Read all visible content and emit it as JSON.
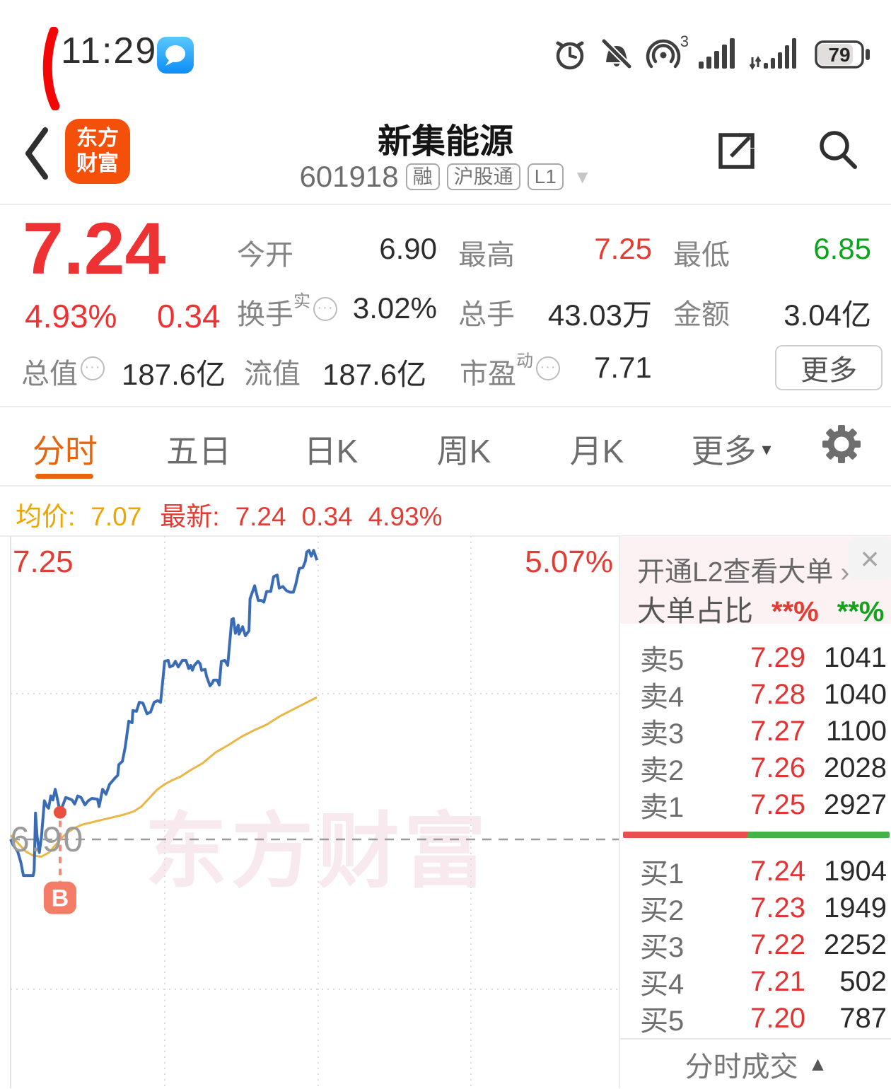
{
  "status_bar": {
    "time": "11:29",
    "battery": "79",
    "hotspot_count": "3"
  },
  "header": {
    "title": "新集能源",
    "code": "601918",
    "badges": [
      "融",
      "沪股通",
      "L1"
    ],
    "logo_line1": "东方",
    "logo_line2": "财富"
  },
  "quote": {
    "price": "7.24",
    "change_pct": "4.93%",
    "change": "0.34",
    "stats": [
      {
        "label": "今开",
        "value": "6.90"
      },
      {
        "label": "最高",
        "value": "7.25"
      },
      {
        "label": "最低",
        "value": "6.85"
      },
      {
        "label": "换手",
        "sup": "实",
        "value": "3.02%"
      },
      {
        "label": "总手",
        "value": "43.03万"
      },
      {
        "label": "金额",
        "value": "3.04亿"
      },
      {
        "label": "总值",
        "value": "187.6亿"
      },
      {
        "label": "流值",
        "value": "187.6亿"
      },
      {
        "label": "市盈",
        "sup": "动",
        "value": "7.71"
      }
    ],
    "more_button": "更多"
  },
  "tabs": {
    "items": [
      "分时",
      "五日",
      "日K",
      "周K",
      "月K",
      "更多"
    ],
    "active": "分时"
  },
  "subbar": {
    "avg_label": "均价:",
    "avg_value": "7.07",
    "last_label": "最新:",
    "last_value": "7.24",
    "last_change": "0.34",
    "last_pct": "4.93%"
  },
  "icons": {
    "dropdown": "▼",
    "more_caret": "▾",
    "footer_up": "▲",
    "link_arrow": "›",
    "close": "×",
    "info_dots": "···"
  },
  "chart_data": {
    "type": "line",
    "title": "分时走势 (intraday)",
    "x_axis": {
      "unit": "minutes_since_09:30",
      "session_minutes": 240,
      "gridline_times": [
        "10:30",
        "11:30/13:00",
        "14:00"
      ]
    },
    "y_axis": {
      "top_price": 7.255,
      "prev_close": 6.9,
      "low": 6.85,
      "top_label": "7.25",
      "top_pct_label": "5.07%",
      "close_label": "6.90"
    },
    "legend_position": "none",
    "grid": true,
    "series": [
      {
        "name": "price",
        "color": "#3a6cb5",
        "width": 4,
        "points": [
          [
            0,
            6.9
          ],
          [
            1,
            6.893
          ],
          [
            2.8,
            6.885
          ],
          [
            4,
            6.872
          ],
          [
            5,
            6.856
          ],
          [
            8.8,
            6.856
          ],
          [
            9.2,
            6.862
          ],
          [
            9.7,
            6.932
          ],
          [
            10.3,
            6.905
          ],
          [
            11.2,
            6.884
          ],
          [
            12,
            6.902
          ],
          [
            13.2,
            6.947
          ],
          [
            14.2,
            6.94
          ],
          [
            14.8,
            6.938
          ],
          [
            15.7,
            6.953
          ],
          [
            16.5,
            6.948
          ],
          [
            17.4,
            6.961
          ],
          [
            18.2,
            6.95
          ],
          [
            19.3,
            6.933
          ],
          [
            20.2,
            6.94
          ],
          [
            21.5,
            6.951
          ],
          [
            22.5,
            6.95
          ],
          [
            24,
            6.948
          ],
          [
            25,
            6.943
          ],
          [
            26.2,
            6.953
          ],
          [
            27.5,
            6.951
          ],
          [
            29,
            6.942
          ],
          [
            30.3,
            6.947
          ],
          [
            31.7,
            6.95
          ],
          [
            33.9,
            6.949
          ],
          [
            34.5,
            6.94
          ],
          [
            35.9,
            6.961
          ],
          [
            37.2,
            6.955
          ],
          [
            38.6,
            6.967
          ],
          [
            40.8,
            6.975
          ],
          [
            41.8,
            6.978
          ],
          [
            42.2,
            6.991
          ],
          [
            43.6,
            6.995
          ],
          [
            44.7,
            7.012
          ],
          [
            46.1,
            7.044
          ],
          [
            47.4,
            7.042
          ],
          [
            47.7,
            7.057
          ],
          [
            49.1,
            7.056
          ],
          [
            50.2,
            7.067
          ],
          [
            51.6,
            7.066
          ],
          [
            53.2,
            7.053
          ],
          [
            54.6,
            7.055
          ],
          [
            56,
            7.067
          ],
          [
            57.4,
            7.069
          ],
          [
            58.5,
            7.067
          ],
          [
            60.1,
            7.117
          ],
          [
            61.5,
            7.118
          ],
          [
            62.1,
            7.11
          ],
          [
            63.4,
            7.112
          ],
          [
            64.3,
            7.117
          ],
          [
            65.4,
            7.11
          ],
          [
            67,
            7.118
          ],
          [
            68.4,
            7.118
          ],
          [
            69.5,
            7.108
          ],
          [
            70.3,
            7.112
          ],
          [
            70.9,
            7.106
          ],
          [
            71.7,
            7.112
          ],
          [
            73.1,
            7.117
          ],
          [
            73.9,
            7.114
          ],
          [
            74.5,
            7.106
          ],
          [
            75.9,
            7.107
          ],
          [
            76.4,
            7.099
          ],
          [
            77.8,
            7.087
          ],
          [
            78.6,
            7.09
          ],
          [
            79.2,
            7.094
          ],
          [
            80.6,
            7.094
          ],
          [
            81.4,
            7.088
          ],
          [
            82.2,
            7.117
          ],
          [
            83.6,
            7.118
          ],
          [
            84.7,
            7.112
          ],
          [
            86.3,
            7.168
          ],
          [
            86.9,
            7.169
          ],
          [
            87.7,
            7.151
          ],
          [
            88.8,
            7.161
          ],
          [
            89.1,
            7.15
          ],
          [
            90.5,
            7.159
          ],
          [
            91.6,
            7.148
          ],
          [
            93,
            7.154
          ],
          [
            93.4,
            7.193
          ],
          [
            95.2,
            7.209
          ],
          [
            96.6,
            7.191
          ],
          [
            97.9,
            7.191
          ],
          [
            98.8,
            7.189
          ],
          [
            99.9,
            7.202
          ],
          [
            101.5,
            7.202
          ],
          [
            102.6,
            7.22
          ],
          [
            104,
            7.222
          ],
          [
            104.8,
            7.206
          ],
          [
            106.2,
            7.208
          ],
          [
            107.6,
            7.203
          ],
          [
            109,
            7.201
          ],
          [
            110.3,
            7.201
          ],
          [
            111.2,
            7.21
          ],
          [
            112.6,
            7.23
          ],
          [
            114,
            7.231
          ],
          [
            115,
            7.239
          ],
          [
            115.5,
            7.25
          ],
          [
            116.4,
            7.252
          ],
          [
            117.3,
            7.245
          ],
          [
            118.2,
            7.252
          ],
          [
            119.5,
            7.24
          ]
        ]
      },
      {
        "name": "avg_price",
        "color": "#eab646",
        "width": 3,
        "points": [
          [
            0,
            6.905
          ],
          [
            3,
            6.895
          ],
          [
            6,
            6.885
          ],
          [
            9,
            6.88
          ],
          [
            12,
            6.879
          ],
          [
            15,
            6.884
          ],
          [
            18,
            6.895
          ],
          [
            20,
            6.902
          ],
          [
            22,
            6.908
          ],
          [
            25,
            6.914
          ],
          [
            28,
            6.918
          ],
          [
            32,
            6.921
          ],
          [
            36,
            6.924
          ],
          [
            40,
            6.927
          ],
          [
            44,
            6.93
          ],
          [
            48,
            6.934
          ],
          [
            51,
            6.94
          ],
          [
            54,
            6.95
          ],
          [
            57,
            6.96
          ],
          [
            60,
            6.967
          ],
          [
            63,
            6.972
          ],
          [
            66,
            6.976
          ],
          [
            70,
            6.984
          ],
          [
            75,
            6.993
          ],
          [
            80,
            7.006
          ],
          [
            85,
            7.015
          ],
          [
            90,
            7.025
          ],
          [
            95,
            7.033
          ],
          [
            100,
            7.04
          ],
          [
            105,
            7.05
          ],
          [
            110,
            7.058
          ],
          [
            115,
            7.066
          ],
          [
            119.5,
            7.073
          ]
        ]
      }
    ],
    "buy_marker": {
      "label": "B",
      "t": 19.3,
      "price": 6.933
    },
    "watermark": "东方财富"
  },
  "order_panel": {
    "l2_link": "开通L2查看大单",
    "ratio_label": "大单占比",
    "ratio_buy_masked": "**%",
    "ratio_sell_masked": "**%",
    "asks": [
      {
        "label": "卖5",
        "price": "7.29",
        "volume": "1041"
      },
      {
        "label": "卖4",
        "price": "7.28",
        "volume": "1040"
      },
      {
        "label": "卖3",
        "price": "7.27",
        "volume": "1100"
      },
      {
        "label": "卖2",
        "price": "7.26",
        "volume": "2028"
      },
      {
        "label": "卖1",
        "price": "7.25",
        "volume": "2927"
      }
    ],
    "bids": [
      {
        "label": "买1",
        "price": "7.24",
        "volume": "1904"
      },
      {
        "label": "买2",
        "price": "7.23",
        "volume": "1949"
      },
      {
        "label": "买3",
        "price": "7.22",
        "volume": "2252"
      },
      {
        "label": "买4",
        "price": "7.21",
        "volume": "502"
      },
      {
        "label": "买5",
        "price": "7.20",
        "volume": "787"
      }
    ],
    "red_bar_ratio": 0.468,
    "colors": {
      "red_bar": "#e94f4f",
      "green_bar": "#43b347"
    },
    "footer": "分时成交"
  }
}
